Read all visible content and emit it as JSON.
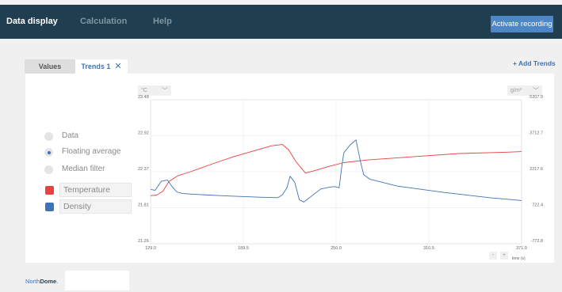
{
  "nav": {
    "items": [
      "Data display",
      "Calculation",
      "Help"
    ],
    "active_index": 0,
    "action_label": "Activate recording",
    "colors": {
      "bar": "#1f3f50",
      "action": "#4e87c8"
    }
  },
  "tabs": [
    {
      "label": "Values",
      "active": false
    },
    {
      "label": "Trends 1",
      "active": true,
      "close_icon": "close-icon"
    }
  ],
  "add_trends_label": "+ Add Trends",
  "display_options": [
    {
      "label": "Data",
      "selected": false
    },
    {
      "label": "Floating average",
      "selected": true
    },
    {
      "label": "Median filter",
      "selected": false
    }
  ],
  "series_fields": [
    {
      "label": "Temperature",
      "color": "#e84141"
    },
    {
      "label": "Density",
      "color": "#3f73b5"
    }
  ],
  "left_unit": "°C",
  "right_unit": "g/m³",
  "x_axis_label": "time (s)",
  "zoom": {
    "out": "-",
    "in": "+"
  },
  "logo": {
    "prefix": "North",
    "suffix": "Dome",
    "mark": "."
  },
  "chart_data": {
    "type": "line",
    "x_ticks": [
      "129.0",
      "189.5",
      "250.0",
      "310.5",
      "371.0"
    ],
    "y_left_ticks": [
      "23.48",
      "22.92",
      "22.37",
      "21.81",
      "21.26"
    ],
    "y_right_ticks": [
      "5207.9",
      "3712.7",
      "2217.6",
      "722.4",
      "-772.8"
    ],
    "xlim": [
      129.0,
      371.0
    ],
    "ylim_left": [
      21.26,
      23.48
    ],
    "ylim_right": [
      -772.8,
      5207.9
    ],
    "grid": true,
    "series": [
      {
        "name": "Temperature",
        "axis": "left",
        "color": "#e84141",
        "x": [
          129,
          133,
          137,
          141,
          147,
          155,
          168,
          183,
          196,
          208,
          215,
          219,
          224,
          230,
          235,
          245,
          255,
          270,
          300,
          330,
          360,
          371
        ],
        "y": [
          22.0,
          22.01,
          22.07,
          22.22,
          22.31,
          22.37,
          22.48,
          22.6,
          22.69,
          22.77,
          22.79,
          22.71,
          22.52,
          22.35,
          22.38,
          22.45,
          22.51,
          22.55,
          22.6,
          22.65,
          22.67,
          22.68
        ]
      },
      {
        "name": "Density",
        "axis": "right",
        "color": "#3f73b5",
        "x": [
          129,
          132,
          136,
          140,
          143,
          146,
          150,
          160,
          180,
          200,
          212,
          215,
          218,
          220,
          223,
          226,
          229,
          234,
          240,
          246,
          249,
          252,
          253.5,
          255,
          259,
          263,
          266,
          268,
          272,
          290,
          320,
          350,
          371
        ],
        "y": [
          1480,
          1450,
          1820,
          1870,
          1600,
          1380,
          1310,
          1270,
          1210,
          1160,
          1140,
          1260,
          1560,
          2030,
          1780,
          1050,
          960,
          1210,
          1500,
          1580,
          1600,
          1550,
          2330,
          3000,
          3320,
          3540,
          2620,
          2100,
          1910,
          1620,
          1360,
          1140,
          1020
        ]
      }
    ]
  }
}
